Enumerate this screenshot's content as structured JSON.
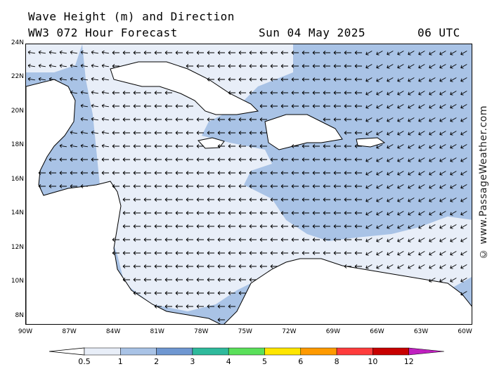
{
  "header": {
    "title": "Wave Height (m) and Direction",
    "model_line": "WW3 072 Hour Forecast",
    "date": "Sun 04 May 2025",
    "time": "06 UTC"
  },
  "watermark": "© www.PassageWeather.com",
  "map": {
    "latitude_labels": [
      "24N",
      "22N",
      "20N",
      "18N",
      "16N",
      "14N",
      "12N",
      "10N",
      "8N"
    ],
    "longitude_labels": [
      "90W",
      "87W",
      "84W",
      "81W",
      "78W",
      "75W",
      "72W",
      "69W",
      "66W",
      "63W",
      "60W"
    ],
    "lat_range": [
      7.5,
      24
    ],
    "lon_range": [
      -90,
      -59.5
    ],
    "land_color": "#ffffff",
    "prevailing_wave_direction": "toward west"
  },
  "legend": {
    "labels": [
      "0.5",
      "1",
      "2",
      "3",
      "4",
      "5",
      "6",
      "8",
      "10",
      "12"
    ],
    "colors": [
      "#e8eef8",
      "#a9c3e6",
      "#6f97d1",
      "#2fba9c",
      "#5ae05a",
      "#ffe600",
      "#ff9a00",
      "#ff3c3c",
      "#c80000",
      "#c020c0"
    ]
  }
}
